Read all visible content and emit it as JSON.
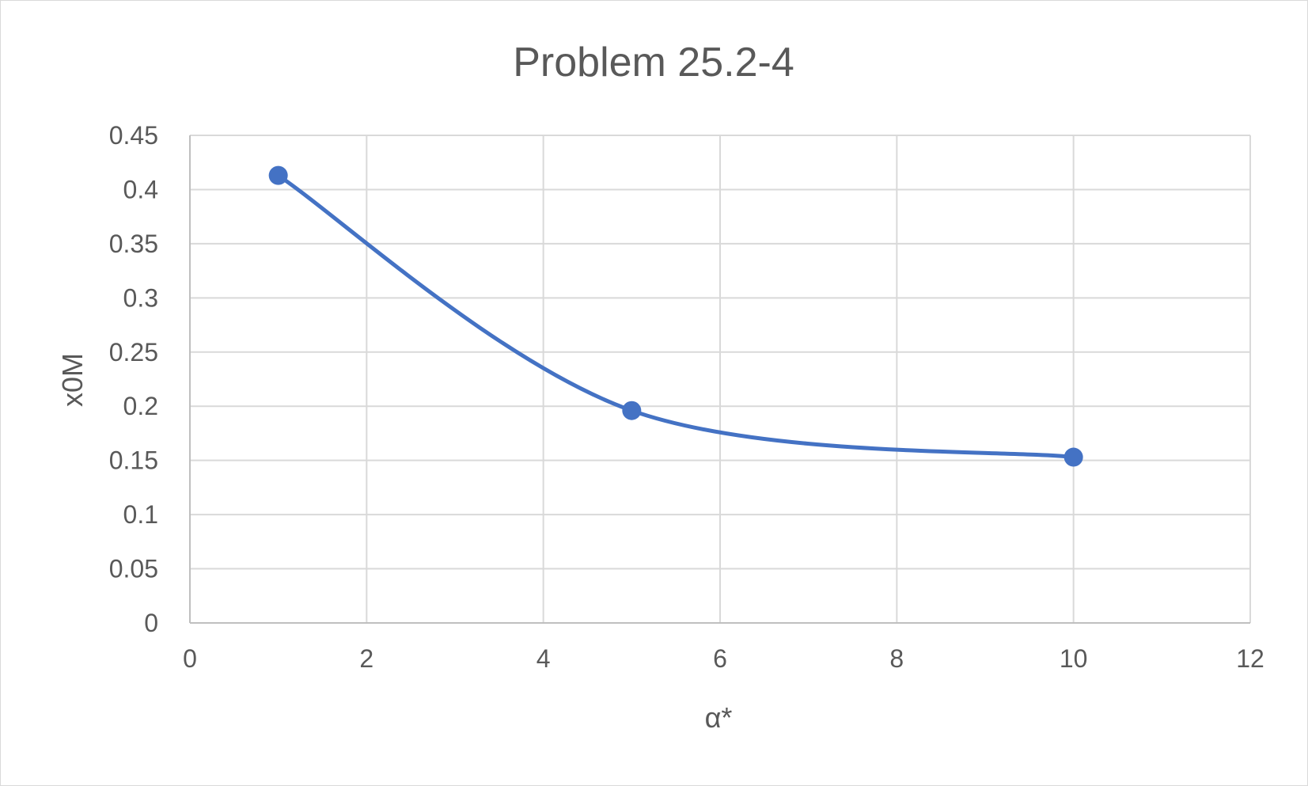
{
  "chart_data": {
    "type": "scatter",
    "title": "Problem 25.2-4",
    "xlabel": "α*",
    "ylabel": "x0M",
    "xlim": [
      0,
      12
    ],
    "ylim": [
      0,
      0.45
    ],
    "x_ticks": [
      0,
      2,
      4,
      6,
      8,
      10,
      12
    ],
    "y_ticks": [
      0,
      0.05,
      0.1,
      0.15,
      0.2,
      0.25,
      0.3,
      0.35,
      0.4,
      0.45
    ],
    "grid": true,
    "legend": "none",
    "series": [
      {
        "x": [
          1,
          5,
          10
        ],
        "y": [
          0.413,
          0.196,
          0.153
        ],
        "line_style": "smooth",
        "markers": true
      }
    ],
    "colors": {
      "series": "#4472c4",
      "grid": "#d9d9d9",
      "text": "#595959"
    }
  }
}
